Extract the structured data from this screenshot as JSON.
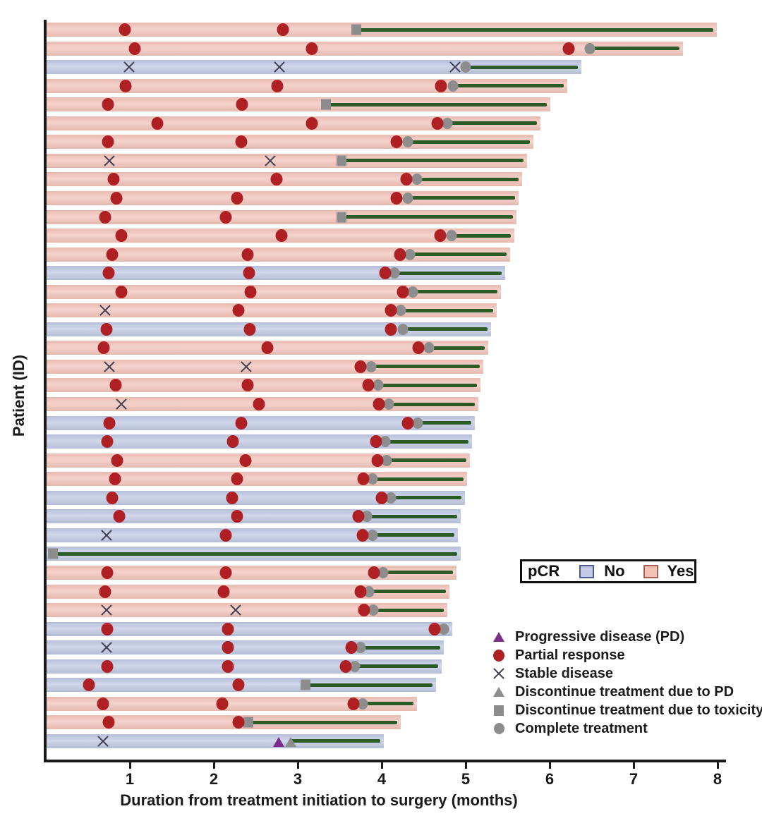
{
  "figure": {
    "xlabel": "Duration from treatment initiation to surgery (months)",
    "ylabel": "Patient (ID)"
  },
  "pcr_legend": {
    "title": "pCR",
    "no_label": "No",
    "yes_label": "Yes"
  },
  "marker_legend": [
    {
      "icon": "progressive-disease-triangle-icon",
      "label": "Progressive disease (PD)"
    },
    {
      "icon": "partial-response-circle-icon",
      "label": "Partial response"
    },
    {
      "icon": "stable-disease-x-icon",
      "label": "Stable disease"
    },
    {
      "icon": "discontinue-pd-triangle-icon",
      "label": "Discontinue treatment due to PD"
    },
    {
      "icon": "discontinue-toxicity-square-icon",
      "label": "Discontinue treatment due to toxicity"
    },
    {
      "icon": "complete-treatment-circle-icon",
      "label": "Complete treatment"
    }
  ],
  "chart_data": {
    "type": "bar",
    "subtype": "swimmer",
    "title": "",
    "xlabel": "Duration from treatment initiation to surgery (months)",
    "ylabel": "Patient (ID)",
    "xlim": [
      0,
      8
    ],
    "x_ticks": [
      1,
      2,
      3,
      4,
      5,
      6,
      7,
      8
    ],
    "grid": false,
    "legend_position": "lower-right",
    "colors": {
      "pcr_yes_bar": "#f1c2b8",
      "pcr_no_bar": "#bec7e2",
      "post_treatment_line": "#2d5b27",
      "partial_response": "#ae2023",
      "stable_disease": "#3e3e52",
      "progressive_disease": "#7b2e8a",
      "gray_marker": "#8d8d8d"
    },
    "event_types": {
      "pr": "Partial response",
      "sd": "Stable disease",
      "pd": "Progressive disease (PD)",
      "dpd": "Discontinue treatment due to PD",
      "dtox": "Discontinue treatment due to toxicity",
      "ct": "Complete treatment"
    },
    "patients": [
      {
        "pcr": "Yes",
        "end": 7.98,
        "events": [
          [
            "pr",
            0.94
          ],
          [
            "pr",
            2.82
          ]
        ],
        "end_event": [
          "dtox",
          3.7
        ]
      },
      {
        "pcr": "Yes",
        "end": 7.58,
        "events": [
          [
            "pr",
            1.06
          ],
          [
            "pr",
            3.17
          ],
          [
            "pr",
            6.23
          ]
        ],
        "end_event": [
          "ct",
          6.48
        ]
      },
      {
        "pcr": "No",
        "end": 6.37,
        "events": [
          [
            "sd",
            0.99
          ],
          [
            "sd",
            2.78
          ],
          [
            "sd",
            4.87
          ]
        ],
        "end_event": [
          "ct",
          5.0
        ]
      },
      {
        "pcr": "Yes",
        "end": 6.2,
        "events": [
          [
            "pr",
            0.95
          ],
          [
            "pr",
            2.76
          ],
          [
            "pr",
            4.71
          ]
        ],
        "end_event": [
          "ct",
          4.85
        ]
      },
      {
        "pcr": "Yes",
        "end": 6.0,
        "events": [
          [
            "pr",
            0.74
          ],
          [
            "pr",
            2.34
          ]
        ],
        "end_event": [
          "dtox",
          3.34
        ]
      },
      {
        "pcr": "Yes",
        "end": 5.88,
        "events": [
          [
            "pr",
            1.33
          ],
          [
            "pr",
            3.17
          ],
          [
            "pr",
            4.66
          ]
        ],
        "end_event": [
          "ct",
          4.78
        ]
      },
      {
        "pcr": "Yes",
        "end": 5.8,
        "events": [
          [
            "pr",
            0.74
          ],
          [
            "pr",
            2.33
          ],
          [
            "pr",
            4.18
          ]
        ],
        "end_event": [
          "ct",
          4.31
        ]
      },
      {
        "pcr": "Yes",
        "end": 5.72,
        "events": [
          [
            "sd",
            0.76
          ],
          [
            "sd",
            2.67
          ]
        ],
        "end_event": [
          "dtox",
          3.52
        ]
      },
      {
        "pcr": "Yes",
        "end": 5.66,
        "events": [
          [
            "pr",
            0.81
          ],
          [
            "pr",
            2.75
          ],
          [
            "pr",
            4.29
          ]
        ],
        "end_event": [
          "ct",
          4.42
        ]
      },
      {
        "pcr": "Yes",
        "end": 5.62,
        "events": [
          [
            "pr",
            0.84
          ],
          [
            "pr",
            2.28
          ],
          [
            "pr",
            4.18
          ]
        ],
        "end_event": [
          "ct",
          4.31
        ]
      },
      {
        "pcr": "Yes",
        "end": 5.6,
        "events": [
          [
            "pr",
            0.71
          ],
          [
            "pr",
            2.14
          ]
        ],
        "end_event": [
          "dtox",
          3.52
        ]
      },
      {
        "pcr": "Yes",
        "end": 5.57,
        "events": [
          [
            "pr",
            0.9
          ],
          [
            "pr",
            2.81
          ],
          [
            "pr",
            4.7
          ]
        ],
        "end_event": [
          "ct",
          4.83
        ]
      },
      {
        "pcr": "Yes",
        "end": 5.52,
        "events": [
          [
            "pr",
            0.79
          ],
          [
            "pr",
            2.4
          ],
          [
            "pr",
            4.22
          ]
        ],
        "end_event": [
          "ct",
          4.34
        ]
      },
      {
        "pcr": "No",
        "end": 5.46,
        "events": [
          [
            "pr",
            0.75
          ],
          [
            "pr",
            2.42
          ],
          [
            "pr",
            4.04
          ]
        ],
        "end_event": [
          "ct",
          4.15
        ]
      },
      {
        "pcr": "Yes",
        "end": 5.41,
        "events": [
          [
            "pr",
            0.9
          ],
          [
            "pr",
            2.44
          ],
          [
            "pr",
            4.25
          ]
        ],
        "end_event": [
          "ct",
          4.37
        ]
      },
      {
        "pcr": "Yes",
        "end": 5.36,
        "events": [
          [
            "sd",
            0.71
          ],
          [
            "pr",
            2.29
          ],
          [
            "pr",
            4.11
          ]
        ],
        "end_event": [
          "ct",
          4.23
        ]
      },
      {
        "pcr": "No",
        "end": 5.29,
        "events": [
          [
            "pr",
            0.72
          ],
          [
            "pr",
            2.43
          ],
          [
            "pr",
            4.11
          ]
        ],
        "end_event": [
          "ct",
          4.25
        ]
      },
      {
        "pcr": "Yes",
        "end": 5.26,
        "events": [
          [
            "pr",
            0.69
          ],
          [
            "pr",
            2.64
          ],
          [
            "pr",
            4.44
          ]
        ],
        "end_event": [
          "ct",
          4.56
        ]
      },
      {
        "pcr": "Yes",
        "end": 5.2,
        "events": [
          [
            "sd",
            0.76
          ],
          [
            "sd",
            2.39
          ],
          [
            "pr",
            3.75
          ]
        ],
        "end_event": [
          "ct",
          3.87
        ]
      },
      {
        "pcr": "Yes",
        "end": 5.17,
        "events": [
          [
            "pr",
            0.83
          ],
          [
            "pr",
            2.4
          ],
          [
            "pr",
            3.84
          ]
        ],
        "end_event": [
          "ct",
          3.96
        ]
      },
      {
        "pcr": "Yes",
        "end": 5.14,
        "events": [
          [
            "sd",
            0.9
          ],
          [
            "pr",
            2.54
          ],
          [
            "pr",
            3.97
          ]
        ],
        "end_event": [
          "ct",
          4.08
        ]
      },
      {
        "pcr": "No",
        "end": 5.1,
        "events": [
          [
            "pr",
            0.76
          ],
          [
            "pr",
            2.33
          ],
          [
            "pr",
            4.31
          ]
        ],
        "end_event": [
          "ct",
          4.43
        ]
      },
      {
        "pcr": "No",
        "end": 5.07,
        "events": [
          [
            "pr",
            0.73
          ],
          [
            "pr",
            2.23
          ],
          [
            "pr",
            3.93
          ]
        ],
        "end_event": [
          "ct",
          4.04
        ]
      },
      {
        "pcr": "Yes",
        "end": 5.04,
        "events": [
          [
            "pr",
            0.85
          ],
          [
            "pr",
            2.38
          ],
          [
            "pr",
            3.95
          ]
        ],
        "end_event": [
          "ct",
          4.06
        ]
      },
      {
        "pcr": "Yes",
        "end": 5.01,
        "events": [
          [
            "pr",
            0.82
          ],
          [
            "pr",
            2.28
          ],
          [
            "pr",
            3.78
          ]
        ],
        "end_event": [
          "ct",
          3.89
        ]
      },
      {
        "pcr": "No",
        "end": 4.98,
        "events": [
          [
            "pr",
            0.79
          ],
          [
            "pr",
            2.22
          ],
          [
            "pr",
            4.0
          ]
        ],
        "end_event": [
          "ct",
          4.11
        ]
      },
      {
        "pcr": "No",
        "end": 4.93,
        "events": [
          [
            "pr",
            0.87
          ],
          [
            "pr",
            2.28
          ],
          [
            "pr",
            3.72
          ]
        ],
        "end_event": [
          "ct",
          3.82
        ]
      },
      {
        "pcr": "No",
        "end": 4.9,
        "events": [
          [
            "sd",
            0.72
          ],
          [
            "pr",
            2.14
          ],
          [
            "pr",
            3.77
          ]
        ],
        "end_event": [
          "ct",
          3.89
        ]
      },
      {
        "pcr": "No",
        "end": 4.93,
        "events": [],
        "end_event": [
          "dtox",
          0.08
        ]
      },
      {
        "pcr": "Yes",
        "end": 4.88,
        "events": [
          [
            "pr",
            0.73
          ],
          [
            "pr",
            2.14
          ],
          [
            "pr",
            3.91
          ]
        ],
        "end_event": [
          "ct",
          4.02
        ]
      },
      {
        "pcr": "Yes",
        "end": 4.8,
        "events": [
          [
            "pr",
            0.71
          ],
          [
            "pr",
            2.12
          ],
          [
            "pr",
            3.75
          ]
        ],
        "end_event": [
          "ct",
          3.85
        ]
      },
      {
        "pcr": "Yes",
        "end": 4.77,
        "events": [
          [
            "sd",
            0.72
          ],
          [
            "sd",
            2.26
          ],
          [
            "pr",
            3.79
          ]
        ],
        "end_event": [
          "ct",
          3.9
        ]
      },
      {
        "pcr": "No",
        "end": 4.83,
        "events": [
          [
            "pr",
            0.73
          ],
          [
            "pr",
            2.17
          ],
          [
            "pr",
            4.63
          ]
        ],
        "end_event": [
          "ct",
          4.74
        ]
      },
      {
        "pcr": "No",
        "end": 4.73,
        "events": [
          [
            "sd",
            0.72
          ],
          [
            "pr",
            2.17
          ],
          [
            "pr",
            3.64
          ]
        ],
        "end_event": [
          "ct",
          3.75
        ]
      },
      {
        "pcr": "No",
        "end": 4.71,
        "events": [
          [
            "pr",
            0.73
          ],
          [
            "pr",
            2.17
          ],
          [
            "pr",
            3.57
          ]
        ],
        "end_event": [
          "ct",
          3.68
        ]
      },
      {
        "pcr": "No",
        "end": 4.64,
        "events": [
          [
            "pr",
            0.51
          ],
          [
            "pr",
            2.29
          ]
        ],
        "end_event": [
          "dtox",
          3.09
        ]
      },
      {
        "pcr": "Yes",
        "end": 4.41,
        "events": [
          [
            "pr",
            0.68
          ],
          [
            "pr",
            2.1
          ],
          [
            "pr",
            3.66
          ]
        ],
        "end_event": [
          "ct",
          3.77
        ]
      },
      {
        "pcr": "Yes",
        "end": 4.22,
        "events": [
          [
            "pr",
            0.75
          ],
          [
            "pr",
            2.29
          ]
        ],
        "end_event": [
          "dtox",
          2.41
        ]
      },
      {
        "pcr": "No",
        "end": 4.02,
        "events": [
          [
            "sd",
            0.68
          ],
          [
            "pd",
            2.77
          ]
        ],
        "end_event": [
          "dpd",
          2.92
        ]
      }
    ]
  }
}
